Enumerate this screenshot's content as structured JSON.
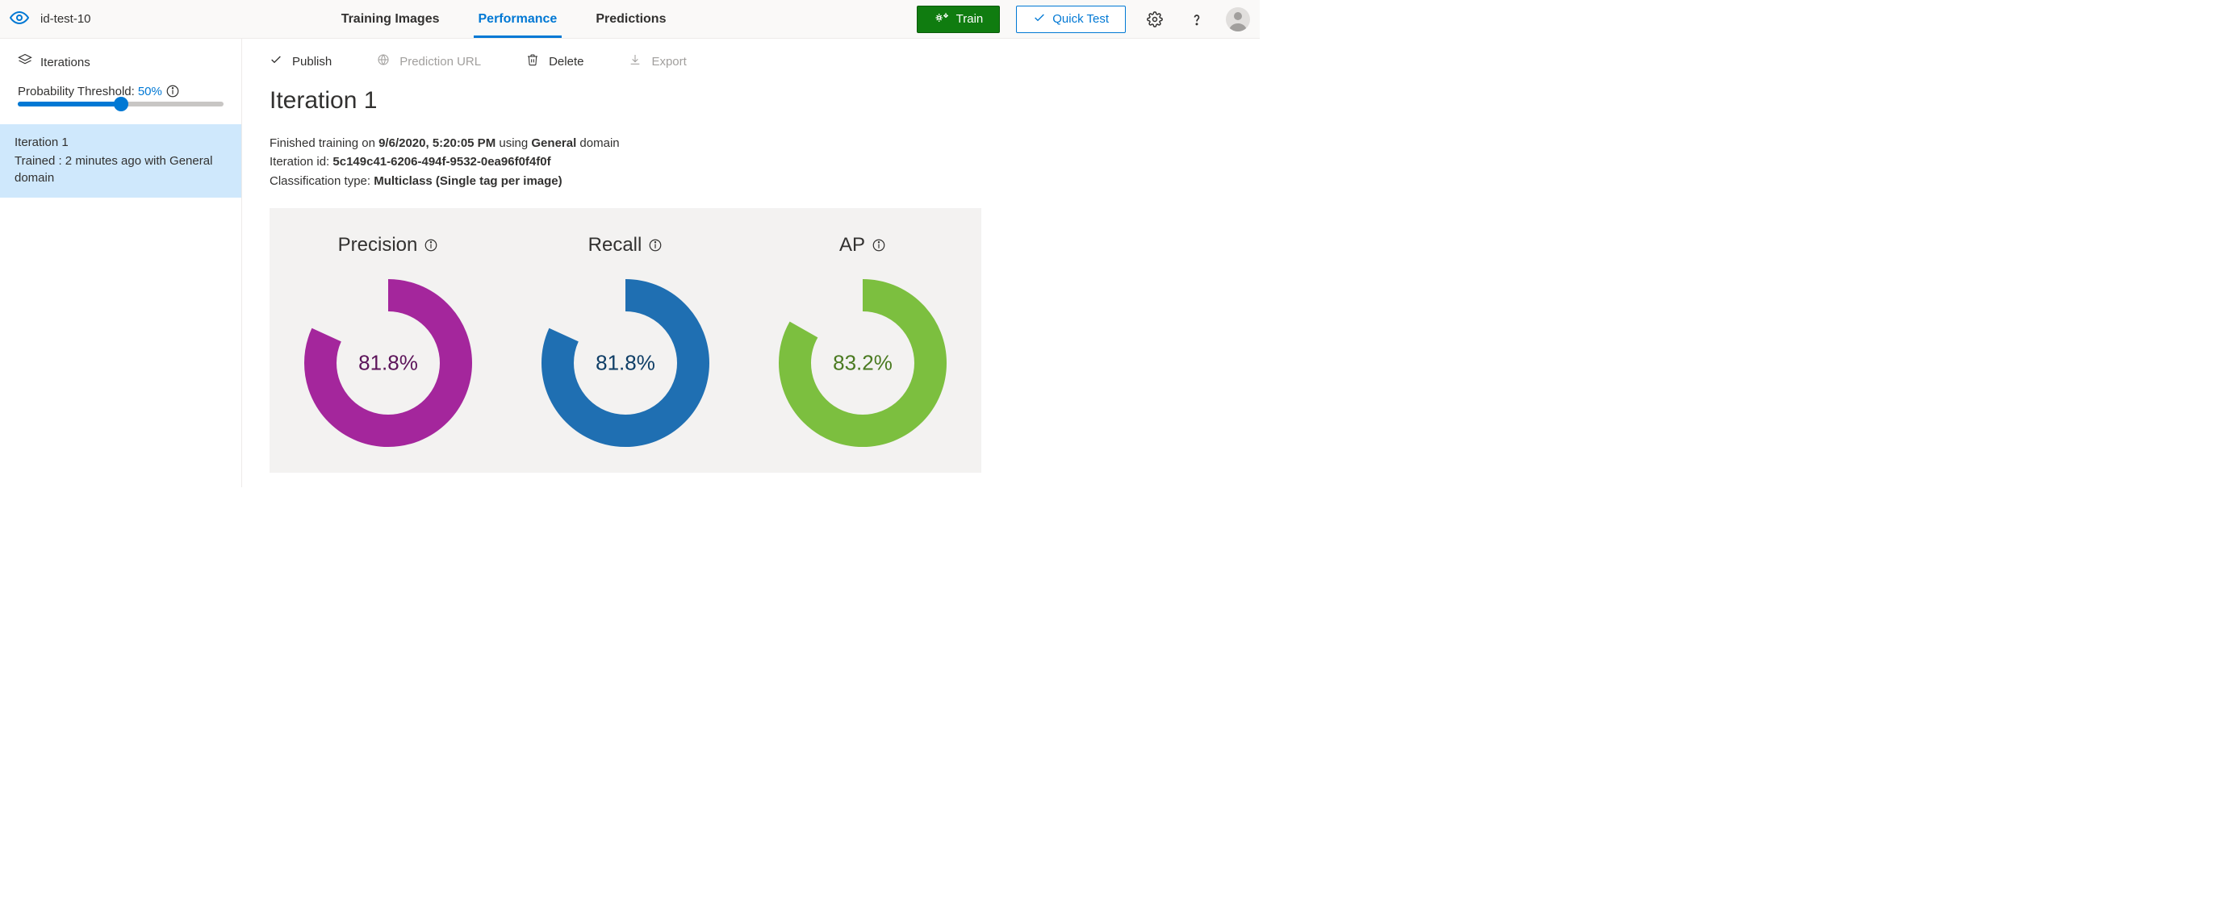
{
  "header": {
    "project_title": "id-test-10",
    "nav": {
      "training": "Training Images",
      "performance": "Performance",
      "predictions": "Predictions",
      "active": "performance"
    },
    "train_label": "Train",
    "quick_test_label": "Quick Test"
  },
  "sidebar": {
    "iterations_label": "Iterations",
    "threshold_label": "Probability Threshold:",
    "threshold_value": "50%",
    "threshold_pct": 50,
    "selected_iteration": {
      "name": "Iteration 1",
      "sub": "Trained : 2 minutes ago with General domain"
    }
  },
  "toolbar": {
    "publish": "Publish",
    "prediction_url": "Prediction URL",
    "delete": "Delete",
    "export": "Export"
  },
  "page": {
    "title": "Iteration 1",
    "finished_prefix": "Finished training on ",
    "finished_date": "9/6/2020, 5:20:05 PM",
    "finished_mid": " using ",
    "finished_domain": "General",
    "finished_suffix": " domain",
    "iteration_id_label": "Iteration id: ",
    "iteration_id": "5c149c41-6206-494f-9532-0ea96f0f4f0f",
    "classification_label": "Classification type: ",
    "classification_value": "Multiclass (Single tag per image)"
  },
  "metrics": {
    "panel_bg": "#f3f2f1",
    "donut_radius": 84,
    "donut_stroke_width": 40,
    "track_color": "#f3f2f1",
    "precision": {
      "label": "Precision",
      "value": 81.8,
      "display": "81.8%",
      "color": "#a4269c",
      "text_color": "#5c145a"
    },
    "recall": {
      "label": "Recall",
      "value": 81.8,
      "display": "81.8%",
      "color": "#1f6fb2",
      "text_color": "#0f3e66"
    },
    "ap": {
      "label": "AP",
      "value": 83.2,
      "display": "83.2%",
      "color": "#7cbf3f",
      "text_color": "#4a7a20"
    }
  }
}
